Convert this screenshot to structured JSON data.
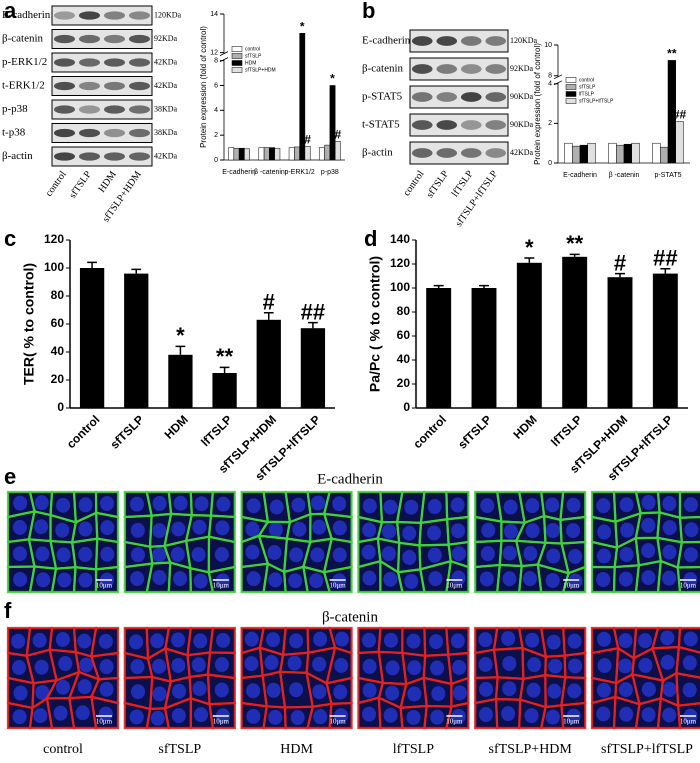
{
  "panel_labels": [
    "a",
    "b",
    "c",
    "d",
    "e",
    "f"
  ],
  "blots": [
    {
      "rows": [
        {
          "protein": "E-cadherin",
          "size": "120KDa"
        },
        {
          "protein": "β-catenin",
          "size": "92KDa"
        },
        {
          "protein": "p-ERK1/2",
          "size": "42KDa"
        },
        {
          "protein": "t-ERK1/2",
          "size": "42KDa"
        },
        {
          "protein": "p-p38",
          "size": "38KDa"
        },
        {
          "protein": "t-p38",
          "size": "38KDa"
        },
        {
          "protein": "β-actin",
          "size": "42KDa"
        }
      ],
      "lanes": [
        "control",
        "sfTSLP",
        "HDM",
        "sfTSLP+HDM"
      ]
    },
    {
      "rows": [
        {
          "protein": "E-cadherin",
          "size": "120KDa"
        },
        {
          "protein": "β-catenin",
          "size": "92KDa"
        },
        {
          "protein": "p-STAT5",
          "size": "90KDa"
        },
        {
          "protein": "t-STAT5",
          "size": "90KDa"
        },
        {
          "protein": "β-actin",
          "size": "42KDa"
        }
      ],
      "lanes": [
        "control",
        "sfTSLP",
        "lfTSLP",
        "sfTSLP+lfTSLP"
      ]
    }
  ],
  "chart_data": [
    {
      "type": "grouped_bar",
      "y_label": "Protein expression (fold of control)",
      "categories": [
        "E-cadherin",
        "β -catenin",
        "p-ERK1/2",
        "p-p38"
      ],
      "series": [
        {
          "name": "control",
          "color": "#ffffff",
          "values": [
            1,
            1,
            1,
            1
          ]
        },
        {
          "name": "sfTSLP",
          "color": "#b0b0b0",
          "values": [
            0.95,
            1,
            1.05,
            1.2
          ]
        },
        {
          "name": "HDM",
          "color": "#000000",
          "values": [
            0.95,
            1,
            13,
            6
          ],
          "annotations": [
            null,
            null,
            "*",
            "*"
          ]
        },
        {
          "name": "sfTSLP+HDM",
          "color": "#e0e0e0",
          "values": [
            0.9,
            0.95,
            1.1,
            1.5
          ],
          "annotations": [
            null,
            null,
            "#",
            "#"
          ]
        }
      ],
      "ylim": [
        0,
        14
      ],
      "yticks": [
        0,
        2,
        4,
        6,
        8,
        12,
        14
      ],
      "axis_break": [
        8,
        12
      ],
      "legend": "top-left"
    },
    {
      "type": "grouped_bar",
      "y_label": "Protein expression (fold of control)",
      "categories": [
        "E-cadherin",
        "β -catenin",
        "p-STAT5"
      ],
      "series": [
        {
          "name": "control",
          "color": "#ffffff",
          "values": [
            1,
            1,
            1
          ]
        },
        {
          "name": "sfTSLP",
          "color": "#b0b0b0",
          "values": [
            0.85,
            0.9,
            0.8
          ]
        },
        {
          "name": "lfTSLP",
          "color": "#000000",
          "values": [
            0.9,
            0.95,
            9
          ],
          "annotations": [
            null,
            null,
            "**"
          ]
        },
        {
          "name": "sfTSLP+lfTSLP",
          "color": "#e0e0e0",
          "values": [
            1,
            1,
            2.1
          ],
          "annotations": [
            null,
            null,
            "##"
          ]
        }
      ],
      "ylim": [
        0,
        10
      ],
      "yticks": [
        0,
        2,
        4,
        8,
        10
      ],
      "axis_break": [
        4,
        8
      ],
      "legend": "top-left"
    },
    {
      "type": "bar",
      "y_label": "TER( %  to  control)",
      "color": "#000000",
      "categories": [
        "control",
        "sfTSLP",
        "HDM",
        "lfTSLP",
        "sfTSLP+HDM",
        "sfTSLP+lfTSLP"
      ],
      "values": [
        100,
        96,
        38,
        25,
        63,
        57
      ],
      "errors": [
        4,
        3,
        6,
        4,
        5,
        4
      ],
      "annotations": [
        null,
        null,
        "*",
        "**",
        "#",
        "##"
      ],
      "ylim": [
        0,
        120
      ],
      "yticks": [
        0,
        20,
        40,
        60,
        80,
        100,
        120
      ]
    },
    {
      "type": "bar",
      "y_label": "Pa/Pc ( %  to  control)",
      "color": "#000000",
      "categories": [
        "control",
        "sfTSLP",
        "HDM",
        "lfTSLP",
        "sfTSLP+HDM",
        "sfTSLP+lfTSLP"
      ],
      "values": [
        100,
        100,
        121,
        126,
        109,
        112
      ],
      "errors": [
        2,
        2,
        4,
        2,
        3,
        4
      ],
      "annotations": [
        null,
        null,
        "*",
        "**",
        "#",
        "##"
      ],
      "ylim": [
        0,
        140
      ],
      "yticks": [
        0,
        20,
        40,
        60,
        80,
        100,
        120,
        140
      ]
    }
  ],
  "micrographs": [
    {
      "title": "E-cadherin",
      "scale_bar": "10μm"
    },
    {
      "title": "β-catenin",
      "scale_bar": "10μm"
    }
  ],
  "conditions": [
    "control",
    "sfTSLP",
    "HDM",
    "lfTSLP",
    "sfTSLP+HDM",
    "sfTSLP+lfTSLP"
  ]
}
